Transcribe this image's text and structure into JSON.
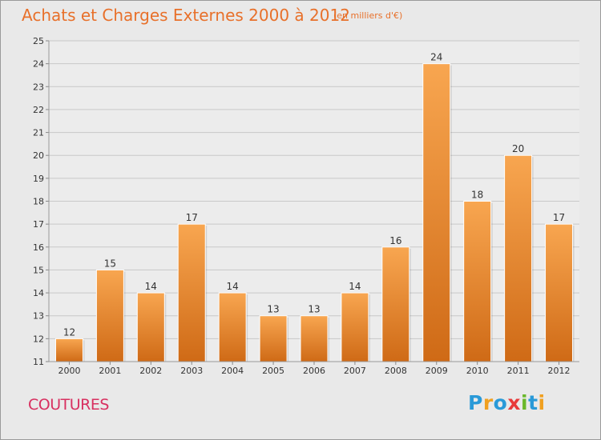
{
  "title": "Achats et Charges Externes 2000 à 2012",
  "subtitle": "(en milliers d'€)",
  "commune": "COUTURES",
  "logo": {
    "text": "Proxiti",
    "letters": [
      {
        "ch": "P",
        "color": "#2a9ad8"
      },
      {
        "ch": "r",
        "color": "#f0a020"
      },
      {
        "ch": "o",
        "color": "#2a9ad8"
      },
      {
        "ch": "x",
        "color": "#e83a3a"
      },
      {
        "ch": "i",
        "color": "#6ab82a"
      },
      {
        "ch": "t",
        "color": "#2a9ad8"
      },
      {
        "ch": "i",
        "color": "#f0a020"
      }
    ]
  },
  "colors": {
    "bar_top": "#f8a650",
    "bar_bottom": "#cf6a16",
    "title": "#e8702a",
    "commune": "#d83060",
    "grid": "#c8c8c8",
    "axis_text": "#333333"
  },
  "chart_data": {
    "type": "bar",
    "categories": [
      "2000",
      "2001",
      "2002",
      "2003",
      "2004",
      "2005",
      "2006",
      "2007",
      "2008",
      "2009",
      "2010",
      "2011",
      "2012"
    ],
    "values": [
      12,
      15,
      14,
      17,
      14,
      13,
      13,
      14,
      16,
      24,
      18,
      20,
      17
    ],
    "ylim": [
      11,
      25
    ],
    "yticks": [
      11,
      12,
      13,
      14,
      15,
      16,
      17,
      18,
      19,
      20,
      21,
      22,
      23,
      24,
      25
    ],
    "grid": true,
    "data_labels": true
  }
}
